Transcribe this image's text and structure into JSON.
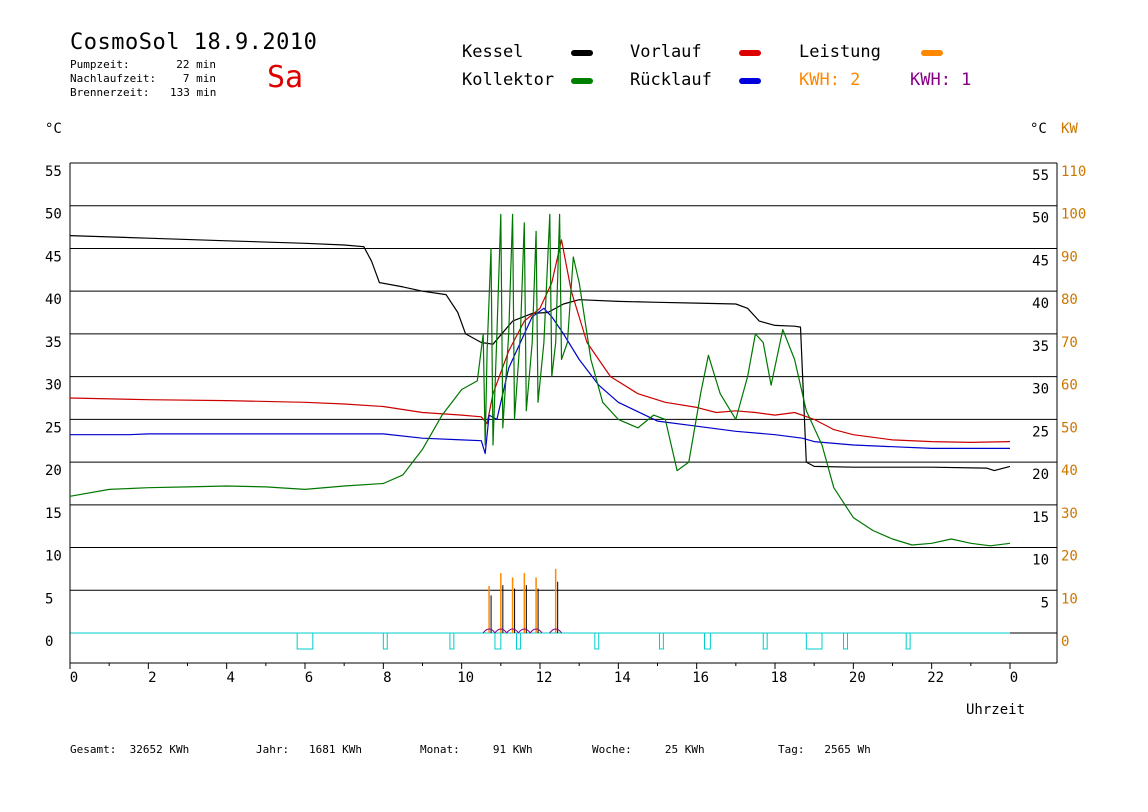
{
  "chart_data": {
    "type": "line",
    "title": "CosmoSol 18.9.2010",
    "day_label": "Sa",
    "info": [
      {
        "label": "Pumpzeit:",
        "value": "22 min"
      },
      {
        "label": "Nachlaufzeit:",
        "value": "7 min"
      },
      {
        "label": "Brennerzeit:",
        "value": "133 min"
      }
    ],
    "legend": [
      {
        "name": "Kessel",
        "color": "#000000"
      },
      {
        "name": "Vorlauf",
        "color": "#dd0000"
      },
      {
        "name": "Leistung",
        "color": "#ff8800"
      },
      {
        "name": "Kollektor",
        "color": "#008000"
      },
      {
        "name": "Rücklauf",
        "color": "#0000dd"
      }
    ],
    "kwh_labels": [
      {
        "text": "KWH: 2",
        "color": "#ff8800"
      },
      {
        "text": "KWH: 1",
        "color": "#880088"
      }
    ],
    "y_left_unit": "°C",
    "y_right_unit": "°C",
    "y_right2_unit": "KW",
    "y_left_ticks": [
      "55",
      "50",
      "45",
      "40",
      "35",
      "30",
      "25",
      "20",
      "15",
      "10",
      "5",
      "0"
    ],
    "y_right_ticks": [
      "55",
      "50",
      "45",
      "40",
      "35",
      "30",
      "25",
      "20",
      "15",
      "10",
      "5"
    ],
    "y_right2_ticks": [
      "110",
      "100",
      "90",
      "80",
      "70",
      "60",
      "50",
      "40",
      "30",
      "20",
      "10",
      "0"
    ],
    "x_ticks": [
      "0",
      "2",
      "4",
      "6",
      "8",
      "10",
      "12",
      "14",
      "16",
      "18",
      "20",
      "22",
      "0"
    ],
    "xlabel": "Uhrzeit",
    "ylim": [
      -4,
      55
    ],
    "xlim": [
      0,
      24
    ],
    "grid": true,
    "series": [
      {
        "name": "Kessel",
        "color": "#000000",
        "points": [
          [
            0,
            46.5
          ],
          [
            2,
            46.2
          ],
          [
            4,
            45.9
          ],
          [
            6,
            45.6
          ],
          [
            7,
            45.4
          ],
          [
            7.5,
            45.2
          ],
          [
            7.7,
            43.5
          ],
          [
            7.9,
            41
          ],
          [
            8.5,
            40.5
          ],
          [
            9,
            40
          ],
          [
            9.6,
            39.6
          ],
          [
            9.9,
            37.5
          ],
          [
            10.1,
            35
          ],
          [
            10.5,
            34
          ],
          [
            10.8,
            33.8
          ],
          [
            11.3,
            36.5
          ],
          [
            11.8,
            37.4
          ],
          [
            12.2,
            37.5
          ],
          [
            12.6,
            38.5
          ],
          [
            13,
            39
          ],
          [
            14,
            38.8
          ],
          [
            15,
            38.7
          ],
          [
            16,
            38.6
          ],
          [
            17,
            38.5
          ],
          [
            17.3,
            38
          ],
          [
            17.6,
            36.5
          ],
          [
            18,
            36
          ],
          [
            18.5,
            35.9
          ],
          [
            18.65,
            35.8
          ],
          [
            18.8,
            20
          ],
          [
            19,
            19.5
          ],
          [
            20,
            19.4
          ],
          [
            22,
            19.4
          ],
          [
            23.4,
            19.3
          ],
          [
            23.6,
            19
          ],
          [
            24,
            19.5
          ]
        ]
      },
      {
        "name": "Vorlauf",
        "color": "#cc0000",
        "points": [
          [
            0,
            27.5
          ],
          [
            2,
            27.3
          ],
          [
            4,
            27.2
          ],
          [
            6,
            27.0
          ],
          [
            7,
            26.8
          ],
          [
            8,
            26.5
          ],
          [
            9,
            25.8
          ],
          [
            10,
            25.5
          ],
          [
            10.5,
            25.3
          ],
          [
            10.65,
            24.5
          ],
          [
            10.8,
            28
          ],
          [
            11.2,
            33
          ],
          [
            11.6,
            36.5
          ],
          [
            12,
            38
          ],
          [
            12.3,
            41
          ],
          [
            12.55,
            46
          ],
          [
            12.8,
            40
          ],
          [
            13.2,
            34
          ],
          [
            13.8,
            30
          ],
          [
            14.5,
            28
          ],
          [
            15.2,
            27
          ],
          [
            16,
            26.4
          ],
          [
            16.5,
            25.8
          ],
          [
            17,
            26
          ],
          [
            17.5,
            25.8
          ],
          [
            18,
            25.5
          ],
          [
            18.5,
            25.8
          ],
          [
            19,
            25
          ],
          [
            19.5,
            23.8
          ],
          [
            20,
            23.2
          ],
          [
            21,
            22.6
          ],
          [
            22,
            22.4
          ],
          [
            23,
            22.3
          ],
          [
            24,
            22.4
          ]
        ]
      },
      {
        "name": "Rücklauf",
        "color": "#0000cc",
        "points": [
          [
            0,
            23.2
          ],
          [
            1.5,
            23.2
          ],
          [
            2,
            23.3
          ],
          [
            4,
            23.3
          ],
          [
            6,
            23.3
          ],
          [
            7,
            23.3
          ],
          [
            8,
            23.3
          ],
          [
            9,
            22.8
          ],
          [
            10,
            22.6
          ],
          [
            10.5,
            22.5
          ],
          [
            10.6,
            21
          ],
          [
            10.7,
            25.5
          ],
          [
            10.9,
            25
          ],
          [
            11.2,
            31
          ],
          [
            11.5,
            34
          ],
          [
            11.8,
            37
          ],
          [
            12.1,
            38
          ],
          [
            12.3,
            37
          ],
          [
            12.6,
            35
          ],
          [
            13,
            32
          ],
          [
            13.5,
            29
          ],
          [
            14,
            27
          ],
          [
            15,
            24.8
          ],
          [
            16,
            24.2
          ],
          [
            17,
            23.6
          ],
          [
            18,
            23.2
          ],
          [
            18.7,
            22.8
          ],
          [
            19,
            22.4
          ],
          [
            20,
            22
          ],
          [
            21,
            21.8
          ],
          [
            22,
            21.6
          ],
          [
            23,
            21.6
          ],
          [
            24,
            21.6
          ]
        ]
      },
      {
        "name": "Kollektor",
        "color": "#007700",
        "points": [
          [
            0,
            16
          ],
          [
            1,
            16.8
          ],
          [
            2,
            17
          ],
          [
            3,
            17.1
          ],
          [
            4,
            17.2
          ],
          [
            5,
            17.1
          ],
          [
            6,
            16.8
          ],
          [
            7,
            17.2
          ],
          [
            8,
            17.5
          ],
          [
            8.5,
            18.5
          ],
          [
            9,
            21.5
          ],
          [
            9.5,
            25.5
          ],
          [
            10,
            28.5
          ],
          [
            10.4,
            29.5
          ],
          [
            10.55,
            35
          ],
          [
            10.6,
            22
          ],
          [
            10.65,
            33
          ],
          [
            10.75,
            45
          ],
          [
            10.8,
            22
          ],
          [
            10.9,
            35
          ],
          [
            11.0,
            49
          ],
          [
            11.05,
            24
          ],
          [
            11.2,
            35
          ],
          [
            11.3,
            49
          ],
          [
            11.35,
            25
          ],
          [
            11.5,
            35
          ],
          [
            11.6,
            48
          ],
          [
            11.65,
            26
          ],
          [
            11.8,
            34
          ],
          [
            11.9,
            47
          ],
          [
            11.95,
            27
          ],
          [
            12.1,
            34
          ],
          [
            12.25,
            49
          ],
          [
            12.3,
            30
          ],
          [
            12.4,
            34
          ],
          [
            12.5,
            49
          ],
          [
            12.55,
            32
          ],
          [
            12.7,
            34
          ],
          [
            12.85,
            44
          ],
          [
            13.0,
            41
          ],
          [
            13.3,
            32
          ],
          [
            13.6,
            27
          ],
          [
            14,
            25
          ],
          [
            14.5,
            24
          ],
          [
            14.9,
            25.5
          ],
          [
            15.2,
            25
          ],
          [
            15.5,
            19
          ],
          [
            15.8,
            20
          ],
          [
            16.1,
            28
          ],
          [
            16.3,
            32.5
          ],
          [
            16.6,
            28
          ],
          [
            17,
            25
          ],
          [
            17.3,
            30
          ],
          [
            17.5,
            35
          ],
          [
            17.7,
            34
          ],
          [
            17.9,
            29
          ],
          [
            18.2,
            35.5
          ],
          [
            18.5,
            32
          ],
          [
            18.8,
            26
          ],
          [
            19.2,
            22
          ],
          [
            19.5,
            17
          ],
          [
            20,
            13.5
          ],
          [
            20.5,
            12
          ],
          [
            21,
            11
          ],
          [
            21.5,
            10.3
          ],
          [
            22,
            10.5
          ],
          [
            22.5,
            11
          ],
          [
            23,
            10.5
          ],
          [
            23.5,
            10.2
          ],
          [
            24,
            10.5
          ]
        ]
      }
    ],
    "pump_markers": [
      [
        5.8,
        6.2
      ],
      [
        8.0,
        8.1
      ],
      [
        9.7,
        9.8
      ],
      [
        10.85,
        11.0
      ],
      [
        11.4,
        11.5
      ],
      [
        13.4,
        13.5
      ],
      [
        15.05,
        15.15
      ],
      [
        16.2,
        16.35
      ],
      [
        17.7,
        17.8
      ],
      [
        18.8,
        19.2
      ],
      [
        19.75,
        19.85
      ],
      [
        21.35,
        21.45
      ]
    ],
    "power_spikes": [
      {
        "x": 10.7,
        "kw": 11
      },
      {
        "x": 11.0,
        "kw": 14
      },
      {
        "x": 11.3,
        "kw": 13
      },
      {
        "x": 11.6,
        "kw": 14
      },
      {
        "x": 11.9,
        "kw": 13
      },
      {
        "x": 12.4,
        "kw": 15
      }
    ],
    "footer": [
      {
        "label": "Gesamt:",
        "value": "32652 KWh"
      },
      {
        "label": "Jahr:",
        "value": "1681 KWh"
      },
      {
        "label": "Monat:",
        "value": "91 KWh"
      },
      {
        "label": "Woche:",
        "value": "25 KWh"
      },
      {
        "label": "Tag:",
        "value": "2565 Wh"
      }
    ]
  }
}
